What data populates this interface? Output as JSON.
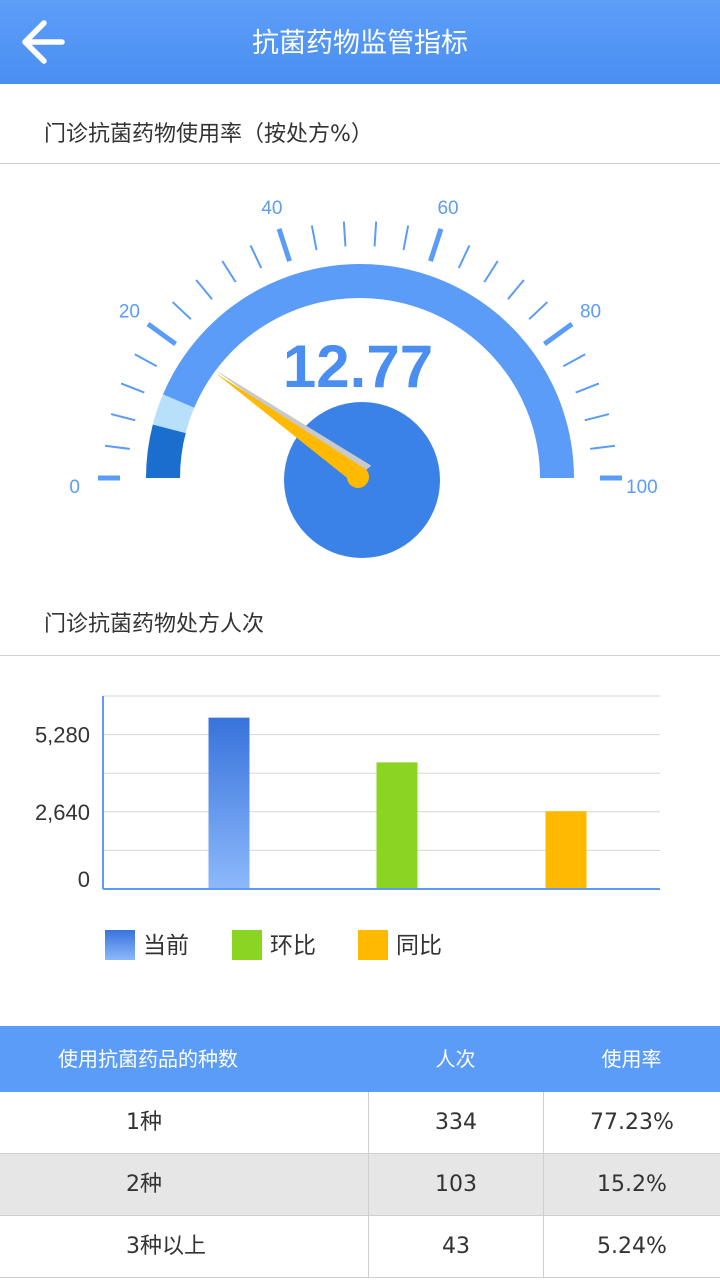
{
  "header": {
    "title": "抗菌药物监管指标"
  },
  "gauge": {
    "title": "门诊抗菌药物使用率（按处方%）",
    "value": 12.77,
    "value_text": "12.77",
    "min": 0,
    "max": 100,
    "tick_labels": [
      "0",
      "20",
      "40",
      "60",
      "80",
      "100"
    ],
    "colors": {
      "arc": "#5b9cf8",
      "dark_segment": "#1a6fce",
      "light_segment": "#b8e0fb",
      "needle": "#ffba00",
      "hub": "#3a82e8",
      "value_text": "#4a8ef2"
    }
  },
  "chart_section": {
    "title": "门诊抗菌药物处方人次"
  },
  "chart_data": {
    "type": "bar",
    "categories": [
      "当前",
      "环比",
      "同比"
    ],
    "values": [
      5860,
      4330,
      2660
    ],
    "ylim": [
      0,
      6600
    ],
    "yticks": [
      0,
      2640,
      5280
    ],
    "ytick_labels": [
      "0",
      "2,640",
      "5,280"
    ],
    "grid": true,
    "legend": "bottom",
    "colors": [
      "#3f80e2",
      "#8ad422",
      "#ffb900"
    ]
  },
  "table": {
    "headers": [
      "使用抗菌药品的种数",
      "人次",
      "使用率"
    ],
    "rows": [
      {
        "type": "1种",
        "count": "334",
        "rate": "77.23%"
      },
      {
        "type": "2种",
        "count": "103",
        "rate": "15.2%"
      },
      {
        "type": "3种以上",
        "count": "43",
        "rate": "5.24%"
      }
    ]
  }
}
